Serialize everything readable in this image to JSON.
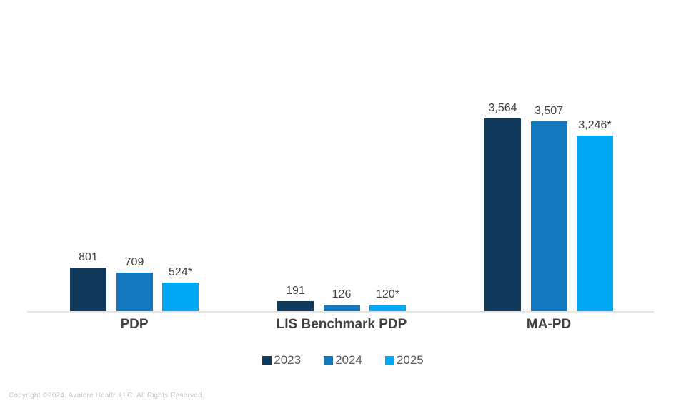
{
  "chart_data": {
    "type": "bar",
    "categories": [
      "PDP",
      "LIS Benchmark PDP",
      "MA-PD"
    ],
    "series": [
      {
        "name": "2023",
        "color": "#123A5C",
        "values": [
          801,
          191,
          3564
        ],
        "labels": [
          "801",
          "191",
          "3,564"
        ]
      },
      {
        "name": "2024",
        "color": "#1478BE",
        "values": [
          709,
          126,
          3507
        ],
        "labels": [
          "709",
          "126",
          "3,507"
        ]
      },
      {
        "name": "2025",
        "color": "#00A8F3",
        "values": [
          524,
          120,
          3246
        ],
        "labels": [
          "524*",
          "120*",
          "3,246*"
        ]
      }
    ],
    "title": "",
    "xlabel": "",
    "ylabel": "",
    "ylim": [
      0,
      3700
    ],
    "grid": false,
    "legend_position": "bottom",
    "legend_entries": [
      "2023",
      "2024",
      "2025"
    ],
    "baseline_color": "#E3E3E3",
    "value_label_color": "#404040",
    "category_label_color": "#404040",
    "legend_text_color": "#595959"
  },
  "footer": {
    "copyright": "Copyright ©2024. Avalere Health LLC. All Rights Reserved."
  }
}
